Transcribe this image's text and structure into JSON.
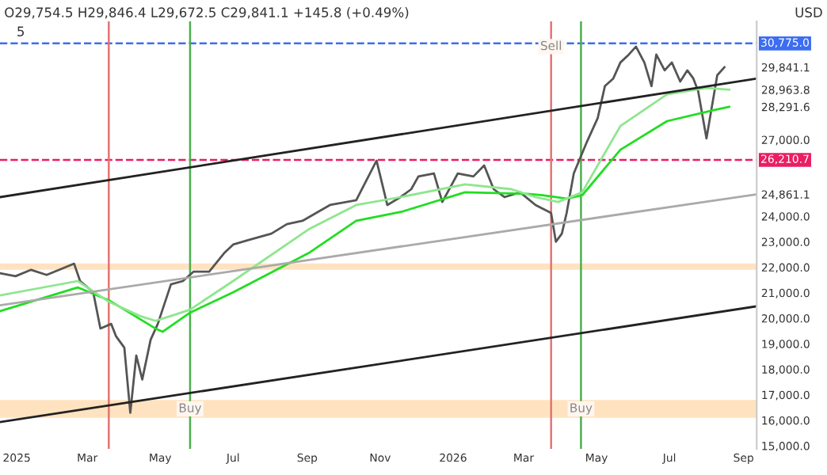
{
  "chart_data": {
    "type": "line",
    "xlim": [
      "2024-12-18",
      "2026-09-12"
    ],
    "xticks": [
      {
        "value": "2025-01-01",
        "label": "2025"
      },
      {
        "value": "2025-03-01",
        "label": "Mar"
      },
      {
        "value": "2025-05-01",
        "label": "May"
      },
      {
        "value": "2025-07-01",
        "label": "Jul"
      },
      {
        "value": "2025-09-01",
        "label": "Sep"
      },
      {
        "value": "2025-11-01",
        "label": "Nov"
      },
      {
        "value": "2026-01-01",
        "label": "2026"
      },
      {
        "value": "2026-03-01",
        "label": "Mar"
      },
      {
        "value": "2026-05-01",
        "label": "May"
      },
      {
        "value": "2026-07-01",
        "label": "Jul"
      },
      {
        "value": "2026-09-01",
        "label": "Sep"
      }
    ],
    "ylim": [
      14880,
      31640
    ],
    "yticks": [
      {
        "value": 15000,
        "label": "15,000.0"
      },
      {
        "value": 16000,
        "label": "16,000.0"
      },
      {
        "value": 17000,
        "label": "17,000.0"
      },
      {
        "value": 18000,
        "label": "18,000.0"
      },
      {
        "value": 19000,
        "label": "19,000.0"
      },
      {
        "value": 20000,
        "label": "20,000.0"
      },
      {
        "value": 21000,
        "label": "21,000.0"
      },
      {
        "value": 22000,
        "label": "22,000.0"
      },
      {
        "value": 23000,
        "label": "23,000.0"
      },
      {
        "value": 24000,
        "label": "24,000.0"
      },
      {
        "value": 24861.1,
        "label": "24,861.1"
      },
      {
        "value": 27000,
        "label": "27,000.0"
      },
      {
        "value": 28291.6,
        "label": "28,291.6"
      },
      {
        "value": 28963.8,
        "label": "28,963.8"
      },
      {
        "value": 29841.1,
        "label": "29,841.1"
      }
    ],
    "series": [
      {
        "color": "#555555",
        "x": [
          "2024-12-18",
          "2024-12-31",
          "2025-01-13",
          "2025-01-26",
          "2025-02-08",
          "2025-02-18",
          "2025-02-23",
          "2025-03-06",
          "2025-03-12",
          "2025-03-21",
          "2025-03-25",
          "2025-04-01",
          "2025-04-06",
          "2025-04-11",
          "2025-04-16",
          "2025-04-23",
          "2025-04-29",
          "2025-05-10",
          "2025-05-20",
          "2025-05-29",
          "2025-06-11",
          "2025-06-24",
          "2025-07-01",
          "2025-07-14",
          "2025-08-02",
          "2025-08-15",
          "2025-08-28",
          "2025-09-20",
          "2025-10-12",
          "2025-10-29",
          "2025-11-07",
          "2025-11-18",
          "2025-11-27",
          "2025-12-03",
          "2025-12-16",
          "2025-12-23",
          "2026-01-05",
          "2026-01-18",
          "2026-01-27",
          "2026-02-04",
          "2026-02-13",
          "2026-02-26",
          "2026-03-11",
          "2026-03-24",
          "2026-03-28",
          "2026-04-02",
          "2026-04-06",
          "2026-04-12",
          "2026-04-23",
          "2026-05-02",
          "2026-05-08",
          "2026-05-15",
          "2026-05-21",
          "2026-05-28",
          "2026-06-03",
          "2026-06-10",
          "2026-06-16",
          "2026-06-20",
          "2026-06-27",
          "2026-07-03",
          "2026-07-10",
          "2026-07-16",
          "2026-07-21",
          "2026-07-25",
          "2026-08-01",
          "2026-08-05",
          "2026-08-10",
          "2026-08-16"
        ],
        "values": [
          21770,
          21650,
          21900,
          21700,
          21950,
          22140,
          21460,
          21020,
          19600,
          19780,
          19300,
          18850,
          16300,
          18540,
          17600,
          19160,
          19780,
          21330,
          21460,
          21830,
          21830,
          22580,
          22890,
          23070,
          23320,
          23690,
          23820,
          24440,
          24630,
          26180,
          24440,
          24750,
          25060,
          25560,
          25680,
          24560,
          25680,
          25560,
          25990,
          25060,
          24750,
          24940,
          24440,
          24130,
          23000,
          23320,
          24130,
          25680,
          26920,
          27850,
          29100,
          29400,
          30030,
          30340,
          30650,
          30030,
          29100,
          30340,
          29720,
          30030,
          29280,
          29720,
          29400,
          28910,
          27050,
          28160,
          29530,
          29841.1
        ]
      },
      {
        "color": "#22dd22",
        "x": [
          "2024-12-18",
          "2025-02-21",
          "2025-03-19",
          "2025-04-27",
          "2025-05-03",
          "2025-05-26",
          "2025-07-01",
          "2025-09-03",
          "2025-10-12",
          "2025-11-20",
          "2026-01-11",
          "2026-03-04",
          "2026-03-17",
          "2026-04-06",
          "2026-04-19",
          "2026-05-21",
          "2026-06-29",
          "2026-08-07",
          "2026-08-20"
        ],
        "values": [
          20280,
          21210,
          20710,
          19600,
          19470,
          20220,
          21020,
          22580,
          23820,
          24190,
          24940,
          24880,
          24820,
          24690,
          24820,
          26610,
          27730,
          28160,
          28291.6
        ]
      },
      {
        "color": "#8ee68e",
        "x": [
          "2024-12-18",
          "2025-02-21",
          "2025-03-19",
          "2025-04-14",
          "2025-04-27",
          "2025-05-10",
          "2025-05-26",
          "2025-07-01",
          "2025-09-03",
          "2025-10-12",
          "2025-11-18",
          "2026-01-11",
          "2026-02-19",
          "2026-03-11",
          "2026-03-30",
          "2026-04-19",
          "2026-05-21",
          "2026-06-29",
          "2026-08-01",
          "2026-08-20"
        ],
        "values": [
          20900,
          21460,
          20650,
          20090,
          19900,
          20090,
          20340,
          21460,
          23510,
          24440,
          24750,
          25250,
          25060,
          24750,
          24560,
          24940,
          27540,
          28780,
          29030,
          28963.8
        ]
      },
      {
        "color": "#222222",
        "x": [
          "2024-12-18",
          "2026-09-12"
        ],
        "values": [
          24750,
          29400
        ]
      },
      {
        "color": "#222222",
        "x": [
          "2024-12-18",
          "2026-09-12"
        ],
        "values": [
          15930,
          20470
        ]
      },
      {
        "color": "#aaaaaa",
        "x": [
          "2024-12-18",
          "2026-09-12"
        ],
        "values": [
          20510,
          24861.1
        ]
      }
    ],
    "ref_lines": [
      {
        "axis": "y",
        "value": 30775.0,
        "label": "30,775.0",
        "color": "#3d6ef0",
        "line_style": "dashed"
      },
      {
        "axis": "y",
        "value": 26210.7,
        "label": "26,210.7",
        "color": "#e91e63",
        "line_style": "dashed"
      },
      {
        "axis": "x",
        "value": "2025-03-19",
        "label": null,
        "color": "#e57373"
      },
      {
        "axis": "x",
        "value": "2025-05-26",
        "label": null,
        "color": "#4caf50"
      },
      {
        "axis": "x",
        "value": "2026-03-24",
        "label": null,
        "color": "#e57373"
      },
      {
        "axis": "x",
        "value": "2026-04-18",
        "label": null,
        "color": "#4caf50"
      }
    ],
    "bands": [
      {
        "axis": "y",
        "from": 16100,
        "to": 16800,
        "label": null,
        "color": "#ffdcb0"
      },
      {
        "axis": "y",
        "from": 21900,
        "to": 22150,
        "label": null,
        "color": "#ffdcb0"
      }
    ],
    "annotations": [
      "O29,754.5 H29,846.4 L29,672.5 C29,841.1 +145.8 (+0.49%)",
      "5",
      "USD",
      {
        "text": "Sell",
        "x": "2026-03-24",
        "y": 30650
      },
      {
        "text": "Buy",
        "x": "2025-05-26",
        "y": 16450
      },
      {
        "text": "Buy",
        "x": "2026-04-18",
        "y": 16450
      }
    ],
    "grid": false,
    "legend": false
  }
}
